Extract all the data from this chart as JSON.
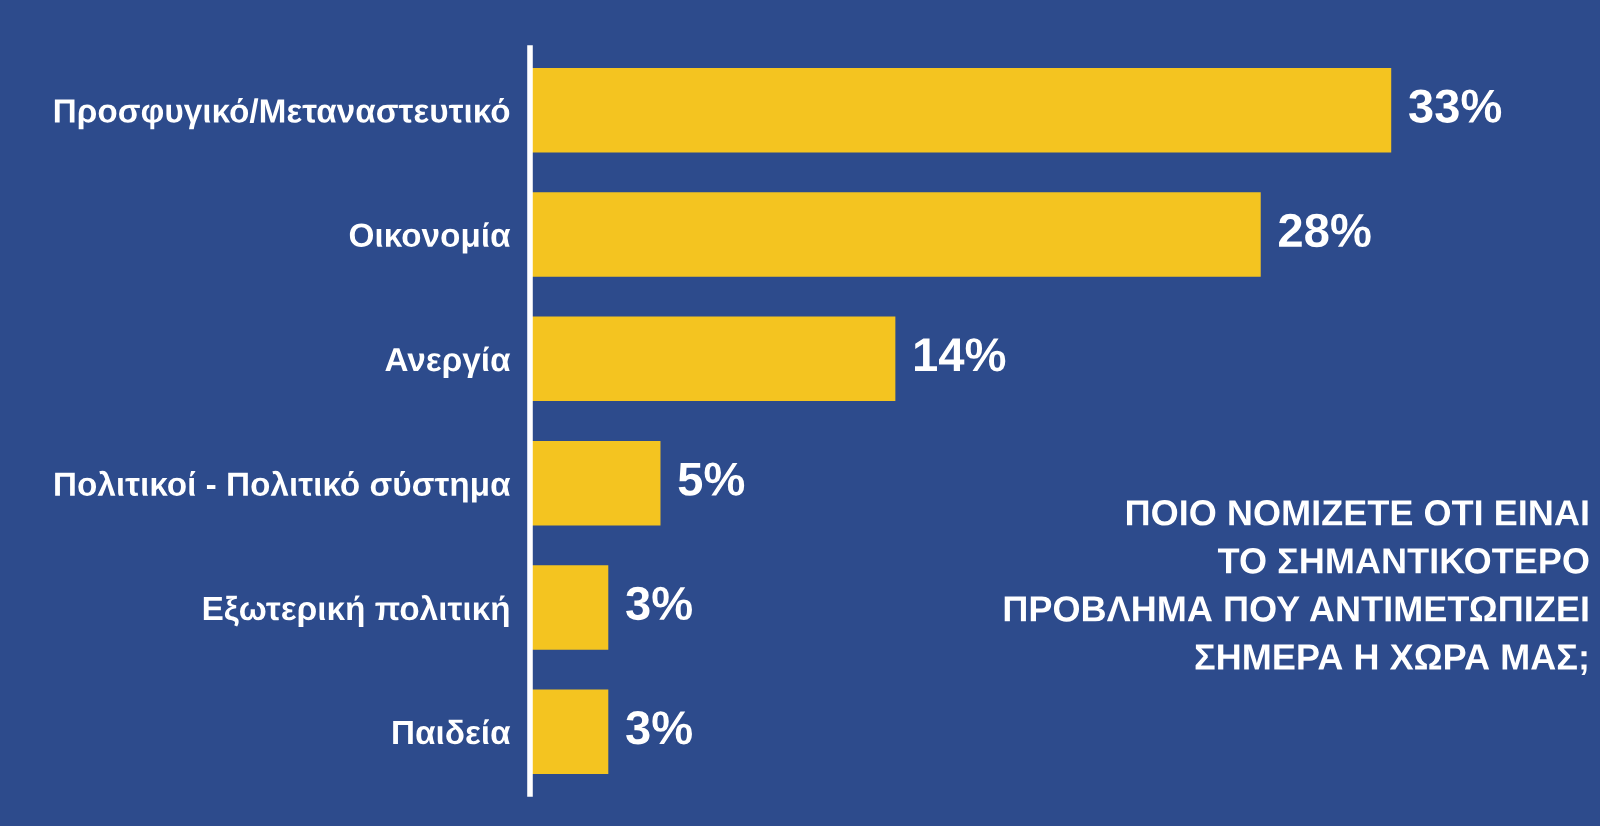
{
  "chart_data": {
    "type": "bar",
    "orientation": "horizontal",
    "title": "ΠΟΙΟ ΝΟΜΙΖΕΤΕ ΟΤΙ ΕΙΝΑΙ\nΤΟ ΣΗΜΑΝΤΙΚΟΤΕΡΟ\nΠΡΟΒΛΗΜΑ ΠΟΥ ΑΝΤΙΜΕΤΩΠΙΖΕΙ\nΣΗΜΕΡΑ Η ΧΩΡΑ ΜΑΣ;",
    "categories": [
      "Προσφυγικό/Μεταναστευτικό",
      "Οικονομία",
      "Ανεργία",
      "Πολιτικοί - Πολιτικό σύστημα",
      "Εξωτερική πολιτική",
      "Παιδεία"
    ],
    "values": [
      33,
      28,
      14,
      5,
      3,
      3
    ],
    "value_labels": [
      "33%",
      "28%",
      "14%",
      "5%",
      "3%",
      "3%"
    ],
    "color": "#f4c420",
    "xlim": [
      0,
      41
    ],
    "tick_labels": "y"
  }
}
